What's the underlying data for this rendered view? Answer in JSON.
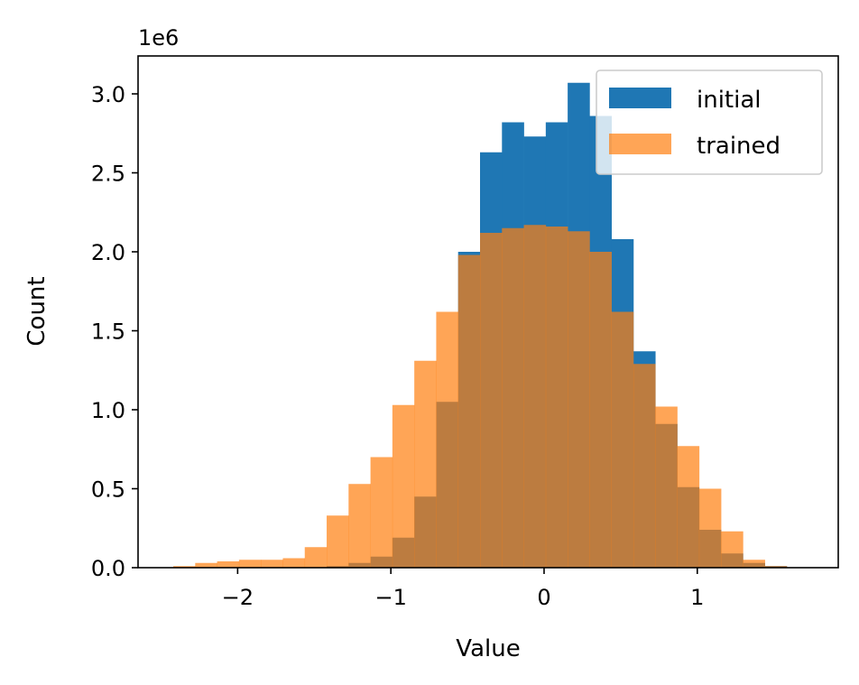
{
  "chart_data": {
    "type": "bar",
    "subtype": "overlaid-histogram",
    "xlabel": "Value",
    "ylabel": "Count",
    "offset_text": "1e6",
    "y_multiplier": 1000000,
    "xlim": [
      -2.65,
      1.92
    ],
    "ylim": [
      0,
      3.24
    ],
    "xticks": [
      -2,
      -1,
      0,
      1
    ],
    "xtick_labels": [
      "−2",
      "−1",
      "0",
      "1"
    ],
    "yticks": [
      0.0,
      0.5,
      1.0,
      1.5,
      2.0,
      2.5,
      3.0
    ],
    "ytick_labels": [
      "0.0",
      "0.5",
      "1.0",
      "1.5",
      "2.0",
      "2.5",
      "3.0"
    ],
    "grid": false,
    "legend_position": "top-right",
    "bin_edges": [
      -2.42,
      -2.277,
      -2.134,
      -1.991,
      -1.848,
      -1.705,
      -1.562,
      -1.419,
      -1.276,
      -1.133,
      -0.99,
      -0.847,
      -0.704,
      -0.561,
      -0.418,
      -0.275,
      -0.132,
      0.011,
      0.154,
      0.297,
      0.44,
      0.583,
      0.726,
      0.869,
      1.012,
      1.155,
      1.298,
      1.441,
      1.584
    ],
    "series": [
      {
        "name": "initial",
        "color": "#1f77b4",
        "opacity": 1.0,
        "values": [
          0,
          0,
          0,
          0,
          0,
          0,
          0,
          0.01,
          0.03,
          0.07,
          0.19,
          0.45,
          1.05,
          2.0,
          2.63,
          2.82,
          2.73,
          2.82,
          3.07,
          2.86,
          2.08,
          1.37,
          0.91,
          0.51,
          0.24,
          0.09,
          0.03,
          0.01
        ]
      },
      {
        "name": "trained",
        "color": "#ff7f0e",
        "opacity": 0.7,
        "values": [
          0.01,
          0.03,
          0.04,
          0.05,
          0.05,
          0.06,
          0.13,
          0.33,
          0.53,
          0.7,
          1.03,
          1.31,
          1.62,
          1.98,
          2.12,
          2.15,
          2.17,
          2.16,
          2.13,
          2.0,
          1.62,
          1.29,
          1.02,
          0.77,
          0.5,
          0.23,
          0.05,
          0.01
        ]
      }
    ]
  }
}
